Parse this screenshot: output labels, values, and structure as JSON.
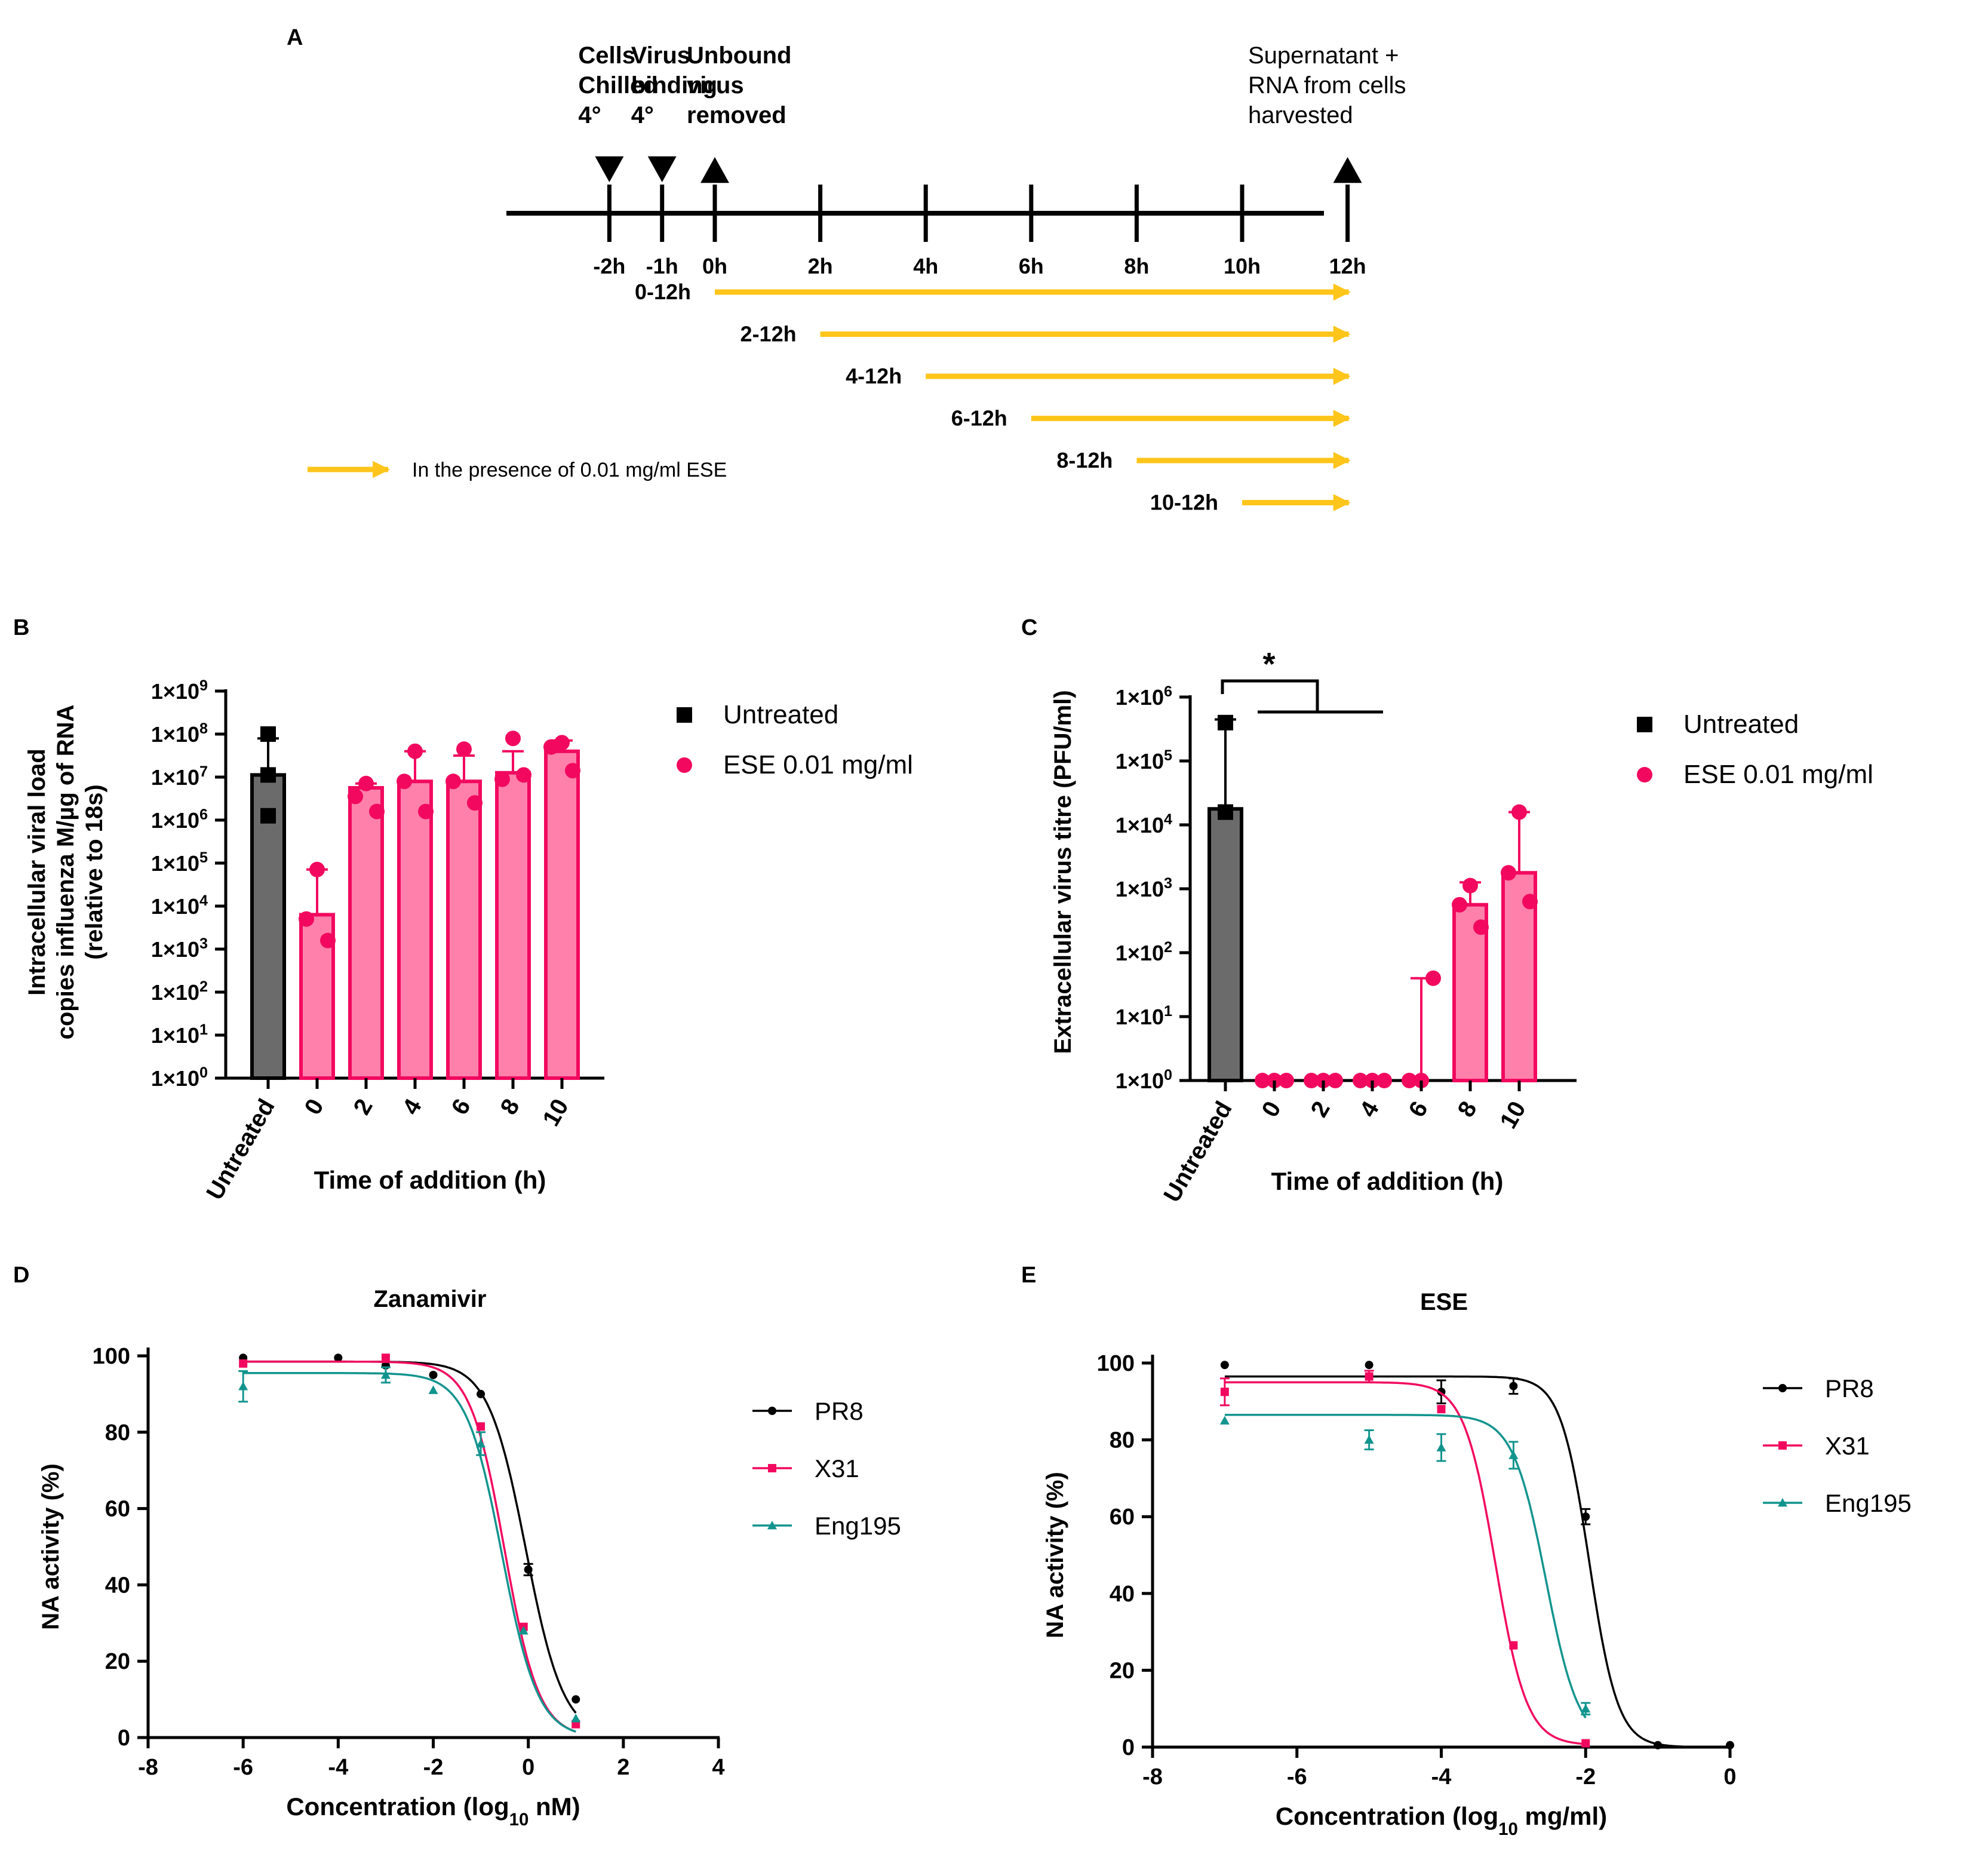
{
  "colors": {
    "ink": "#000000",
    "pink_fill": "#ff80ab",
    "pink": "#f2095f",
    "grey": "#6b6b6b",
    "teal": "#12948e",
    "gold": "#ffc51a"
  },
  "panelA": {
    "letter": "A",
    "events": [
      {
        "time": -2,
        "direction": "down",
        "lines": [
          "Cells",
          "Chilled",
          "4°"
        ]
      },
      {
        "time": -1,
        "direction": "down",
        "lines": [
          "Virus",
          "binding",
          "4°"
        ]
      },
      {
        "time": 0,
        "direction": "up",
        "lines": [
          "Unbound",
          "virus",
          "removed"
        ]
      },
      {
        "time": 12,
        "direction": "up",
        "lines": [
          "Supernatant +",
          "RNA from cells",
          "harvested"
        ]
      }
    ],
    "ticks": [
      "-2h",
      "-1h",
      "0h",
      "2h",
      "4h",
      "6h",
      "8h",
      "10h",
      "12h"
    ],
    "tick_hours": [
      -2,
      -1,
      0,
      2,
      4,
      6,
      8,
      10,
      12
    ],
    "intervals": [
      {
        "label": "0-12h",
        "start": 0,
        "end": 12
      },
      {
        "label": "2-12h",
        "start": 2,
        "end": 12
      },
      {
        "label": "4-12h",
        "start": 4,
        "end": 12
      },
      {
        "label": "6-12h",
        "start": 6,
        "end": 12
      },
      {
        "label": "8-12h",
        "start": 8,
        "end": 12
      },
      {
        "label": "10-12h",
        "start": 10,
        "end": 12
      }
    ],
    "legend": "In the presence of 0.01 mg/ml ESE"
  },
  "chart_data": [
    {
      "panel": "B",
      "type": "bar",
      "scale": "log10",
      "ylabel_lines": [
        "Intracellular viral load",
        "copies influenza M/µg of RNA",
        "(relative to 18s)"
      ],
      "xlabel": "Time of addition (h)",
      "categories": [
        "Untreated",
        "0",
        "2",
        "4",
        "6",
        "8",
        "10"
      ],
      "yticks": [
        "1×10",
        "1×10",
        "1×10",
        "1×10",
        "1×10",
        "1×10",
        "1×10",
        "1×10",
        "1×10",
        "1×10"
      ],
      "ytick_exp": [
        "0",
        "1",
        "2",
        "3",
        "4",
        "5",
        "6",
        "7",
        "8",
        "9"
      ],
      "ylim_log10": [
        0,
        9
      ],
      "bars_log10": [
        7.05,
        3.8,
        6.75,
        6.9,
        6.9,
        7.1,
        7.6
      ],
      "err_upper_log10": [
        7.9,
        4.85,
        6.85,
        7.6,
        7.5,
        7.6,
        7.85
      ],
      "points_log10": [
        [
          8.0,
          6.1,
          7.05
        ],
        [
          4.85,
          3.7,
          3.2
        ],
        [
          6.85,
          6.55,
          6.2
        ],
        [
          7.6,
          6.9,
          6.2
        ],
        [
          7.65,
          6.9,
          6.4
        ],
        [
          7.9,
          6.95,
          7.05
        ],
        [
          7.8,
          7.7,
          7.15
        ]
      ],
      "groups": [
        "untreated",
        "ese",
        "ese",
        "ese",
        "ese",
        "ese",
        "ese"
      ],
      "legend": [
        "Untreated",
        "ESE 0.01 mg/ml"
      ]
    },
    {
      "panel": "C",
      "type": "bar",
      "scale": "log10",
      "ylabel": "Extracellular virus titre (PFU/ml)",
      "xlabel": "Time of addition (h)",
      "categories": [
        "Untreated",
        "0",
        "2",
        "4",
        "6",
        "8",
        "10"
      ],
      "yticks": [
        "1×10",
        "1×10",
        "1×10",
        "1×10",
        "1×10",
        "1×10",
        "1×10"
      ],
      "ytick_exp": [
        "0",
        "1",
        "2",
        "3",
        "4",
        "5",
        "6"
      ],
      "ylim_log10": [
        0,
        6
      ],
      "bars_log10": [
        4.25,
        0,
        0,
        0,
        0,
        2.75,
        3.25
      ],
      "err_upper_log10": [
        5.65,
        0,
        0,
        0,
        1.6,
        3.1,
        4.2
      ],
      "points_log10": [
        [
          5.6,
          4.2,
          4.2
        ],
        [
          0,
          0,
          0
        ],
        [
          0,
          0,
          0
        ],
        [
          0,
          0,
          0
        ],
        [
          0,
          0,
          1.6
        ],
        [
          3.05,
          2.75,
          2.4
        ],
        [
          4.2,
          3.25,
          2.8
        ]
      ],
      "groups": [
        "untreated",
        "ese",
        "ese",
        "ese",
        "ese",
        "ese",
        "ese"
      ],
      "significance": "*",
      "legend": [
        "Untreated",
        "ESE 0.01 mg/ml"
      ]
    },
    {
      "panel": "D",
      "type": "line",
      "title": "Zanamivir",
      "ylabel": "NA activity (%)",
      "xlabel": "Concentration (log",
      "xlabel_sub": "10",
      "xlabel_end": " nM)",
      "xlim": [
        -8,
        4
      ],
      "ylim": [
        0,
        100
      ],
      "xticks": [
        "-8",
        "-6",
        "-4",
        "-2",
        "0",
        "2",
        "4"
      ],
      "yticks": [
        "0",
        "20",
        "40",
        "60",
        "80",
        "100"
      ],
      "series": [
        {
          "name": "PR8",
          "color": "#000000",
          "marker": "circle",
          "top": 98.5,
          "bottom": 0,
          "log_ic50": -0.05,
          "hill": 1.1,
          "x": [
            -6,
            -4,
            -3,
            -2,
            -1,
            0,
            1
          ],
          "y": [
            99.5,
            99.5,
            97.5,
            95,
            90,
            44,
            10
          ],
          "err": [
            0,
            0,
            0,
            0,
            0,
            1.5,
            0
          ]
        },
        {
          "name": "X31",
          "color": "#f2095f",
          "marker": "square",
          "top": 98.5,
          "bottom": 0,
          "log_ic50": -0.5,
          "hill": 1.2,
          "x": [
            -6,
            -3,
            -1,
            -0.1,
            1
          ],
          "y": [
            98,
            99.5,
            81.5,
            29,
            3.5
          ],
          "err": [
            0,
            0,
            0,
            0,
            0
          ]
        },
        {
          "name": "Eng195",
          "color": "#12948e",
          "marker": "triangle",
          "top": 95.5,
          "bottom": 0,
          "log_ic50": -0.55,
          "hill": 1.15,
          "x": [
            -6,
            -3,
            -2,
            -1,
            -0.1,
            1
          ],
          "y": [
            92,
            95,
            91,
            77,
            28,
            5
          ],
          "err": [
            4,
            2,
            0,
            3,
            0,
            0
          ]
        }
      ]
    },
    {
      "panel": "E",
      "type": "line",
      "title": "ESE",
      "ylabel": "NA activity (%)",
      "xlabel": "Concentration (log",
      "xlabel_sub": "10",
      "xlabel_end": " mg/ml)",
      "xlim": [
        -8,
        0
      ],
      "ylim": [
        0,
        100
      ],
      "xticks": [
        "-8",
        "-6",
        "-4",
        "-2",
        "0"
      ],
      "yticks": [
        "0",
        "20",
        "40",
        "60",
        "80",
        "100"
      ],
      "series": [
        {
          "name": "PR8",
          "color": "#000000",
          "marker": "circle",
          "top": 96.5,
          "bottom": 0,
          "log_ic50": -1.95,
          "hill": 2.2,
          "x": [
            -7,
            -5,
            -4,
            -3,
            -2,
            -1,
            0
          ],
          "y": [
            99.5,
            99.5,
            92.5,
            94,
            60,
            0.5,
            0.5
          ],
          "err": [
            0,
            0,
            3,
            2,
            2,
            0,
            0
          ]
        },
        {
          "name": "X31",
          "color": "#f2095f",
          "marker": "square",
          "top": 95,
          "bottom": 0.5,
          "log_ic50": -3.25,
          "hill": 2,
          "x": [
            -7,
            -5,
            -4,
            -3,
            -2
          ],
          "y": [
            92.5,
            96.5,
            88,
            26.5,
            1
          ],
          "err": [
            3.5,
            1.5,
            0,
            0,
            0
          ]
        },
        {
          "name": "Eng195",
          "color": "#12948e",
          "marker": "triangle",
          "top": 86.5,
          "bottom": 0.5,
          "log_ic50": -2.55,
          "hill": 1.9,
          "x": [
            -7,
            -5,
            -4,
            -3,
            -2
          ],
          "y": [
            85,
            80,
            78,
            76,
            10
          ],
          "err": [
            0,
            2.5,
            3.5,
            3.5,
            1.5
          ]
        }
      ]
    }
  ]
}
